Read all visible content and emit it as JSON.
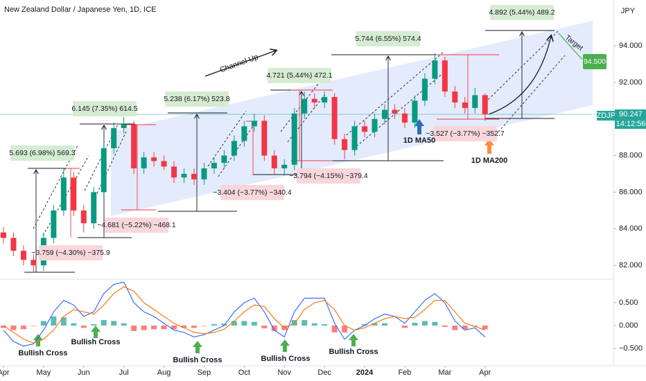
{
  "chart_data": [
    {
      "type": "candlestick",
      "title": "New Zealand Dollar / Japanese Yen, 1D, ICE",
      "x": [
        0,
        0.25,
        0.5,
        0.75,
        1,
        1.25,
        1.5,
        1.75,
        2,
        2.25,
        2.5,
        2.75,
        3,
        3.25,
        3.5,
        3.75,
        4,
        4.25,
        4.5,
        4.75,
        5,
        5.25,
        5.5,
        5.75,
        6,
        6.25,
        6.5,
        6.75,
        7,
        7.25,
        7.5,
        7.75,
        8,
        8.25,
        8.5,
        8.75,
        9,
        9.25,
        9.5,
        9.75,
        10,
        10.25,
        10.5,
        10.75,
        11,
        11.25,
        11.5,
        11.75,
        12
      ],
      "open": [
        83.8,
        83.5,
        82.8,
        82.3,
        82.0,
        83.5,
        85.0,
        86.8,
        85.0,
        84.3,
        86.0,
        88.4,
        89.5,
        89.7,
        87.3,
        87.9,
        87.7,
        87.4,
        86.8,
        87.0,
        86.7,
        87.3,
        87.6,
        88.0,
        88.8,
        89.6,
        89.9,
        88.0,
        87.3,
        87.5,
        90.3,
        91.1,
        90.9,
        91.2,
        88.9,
        88.3,
        89.6,
        89.3,
        90.0,
        90.5,
        90.3,
        89.8,
        91.0,
        92.2,
        93.2,
        91.5,
        90.9,
        90.6,
        91.3
      ],
      "high": [
        84.1,
        83.8,
        83.1,
        82.6,
        83.8,
        85.3,
        87.3,
        87.1,
        85.3,
        86.3,
        88.7,
        89.8,
        90.1,
        89.9,
        88.2,
        88.2,
        88.0,
        87.7,
        87.3,
        87.3,
        87.6,
        87.9,
        88.3,
        89.1,
        89.9,
        90.3,
        90.2,
        88.3,
        87.8,
        90.6,
        91.5,
        91.4,
        91.5,
        91.4,
        89.2,
        89.9,
        89.9,
        90.3,
        90.8,
        90.8,
        90.6,
        91.3,
        92.5,
        93.6,
        93.4,
        91.8,
        91.2,
        91.7,
        91.4
      ],
      "low": [
        83.2,
        82.5,
        82.0,
        81.6,
        81.7,
        83.2,
        84.7,
        84.7,
        83.8,
        84.0,
        85.7,
        88.1,
        89.2,
        87.0,
        87.0,
        87.4,
        87.2,
        86.5,
        86.5,
        86.4,
        86.4,
        87.0,
        87.3,
        87.7,
        88.5,
        89.3,
        87.7,
        87.0,
        86.9,
        87.2,
        90.0,
        90.6,
        90.6,
        88.6,
        87.8,
        88.0,
        89.0,
        89.0,
        89.7,
        90.0,
        89.5,
        89.5,
        90.7,
        91.9,
        91.2,
        90.6,
        90.3,
        90.3,
        89.9
      ],
      "close": [
        83.5,
        82.8,
        82.3,
        82.0,
        83.5,
        85.0,
        86.8,
        85.0,
        84.3,
        86.0,
        88.4,
        89.5,
        89.7,
        87.3,
        87.9,
        87.7,
        87.4,
        86.8,
        87.0,
        86.7,
        87.3,
        87.6,
        88.0,
        88.8,
        89.6,
        89.9,
        88.0,
        87.3,
        87.5,
        90.3,
        91.1,
        90.9,
        91.2,
        88.9,
        88.3,
        89.6,
        89.3,
        90.0,
        90.5,
        90.3,
        89.8,
        91.0,
        92.2,
        93.2,
        91.5,
        90.9,
        90.6,
        91.3,
        90.25
      ],
      "up_color": "#089981",
      "down_color": "#f23645",
      "xlim": [
        -0.0864,
        15.2
      ],
      "xticks": [
        {
          "value": 0,
          "label": "Apr"
        },
        {
          "value": 1,
          "label": "May"
        },
        {
          "value": 2,
          "label": "Jun"
        },
        {
          "value": 3,
          "label": "Jul"
        },
        {
          "value": 4,
          "label": "Aug"
        },
        {
          "value": 5,
          "label": "Sep"
        },
        {
          "value": 6,
          "label": "Oct"
        },
        {
          "value": 7,
          "label": "Nov"
        },
        {
          "value": 8,
          "label": "Dec"
        },
        {
          "value": 9,
          "label": "2024"
        },
        {
          "value": 10,
          "label": "Feb"
        },
        {
          "value": 11,
          "label": "Mar"
        },
        {
          "value": 12,
          "label": "Apr"
        }
      ],
      "ylim": [
        81.36,
        96.5
      ],
      "yticks": [
        {
          "value": 82,
          "label": "82.000"
        },
        {
          "value": 84,
          "label": "84.000"
        },
        {
          "value": 86,
          "label": "86.000"
        },
        {
          "value": 88,
          "label": "88.000"
        },
        {
          "value": 90,
          "label": "90.000"
        },
        {
          "value": 92,
          "label": "92.000"
        },
        {
          "value": 94,
          "label": "94.000"
        }
      ],
      "grid": false,
      "annotations": [
        "5.693 (6.98%) 569.3",
        "6.145 (7.35%) 614.5",
        "5.238 (6.17%) 523.8",
        "4.721 (5.44%) 472.1",
        "5.744 (6.55%) 574.4",
        "4.892 (5.44%) 489.2",
        "−3.759 (−4.30%) −375.9",
        "−4.681 (−5.22%) −468.1",
        "−3.404 (−3.77%) −340.4",
        "−3.794 (−4.15%) −379.4",
        "−3.527 (−3.77%) −352.7",
        "Channel Up",
        "Target",
        "94.500",
        "1D MA50",
        "1D MA200",
        "NZDJPY",
        "90.247",
        "14:12:56",
        "JPY"
      ]
    },
    {
      "type": "macd",
      "x": [
        0,
        0.25,
        0.5,
        0.75,
        1,
        1.25,
        1.5,
        1.75,
        2,
        2.25,
        2.5,
        2.75,
        3,
        3.25,
        3.5,
        3.75,
        4,
        4.25,
        4.5,
        4.75,
        5,
        5.25,
        5.5,
        5.75,
        6,
        6.25,
        6.5,
        6.75,
        7,
        7.25,
        7.5,
        7.75,
        8,
        8.25,
        8.5,
        8.75,
        9,
        9.25,
        9.5,
        9.75,
        10,
        10.25,
        10.5,
        10.75,
        11,
        11.25,
        11.5,
        11.75,
        12
      ],
      "series": [
        {
          "type": "line",
          "color": "#2962ff",
          "values": [
            -0.1,
            -0.35,
            -0.45,
            -0.4,
            -0.1,
            0.3,
            0.55,
            0.45,
            0.2,
            0.3,
            0.7,
            0.9,
            0.95,
            0.5,
            0.3,
            0.2,
            0.05,
            -0.1,
            -0.15,
            -0.25,
            -0.2,
            -0.1,
            0.0,
            0.3,
            0.5,
            0.6,
            0.3,
            -0.1,
            -0.25,
            0.3,
            0.6,
            0.6,
            0.6,
            0.05,
            -0.3,
            -0.1,
            0.0,
            0.15,
            0.25,
            0.2,
            0.05,
            0.3,
            0.55,
            0.7,
            0.5,
            0.1,
            -0.1,
            -0.05,
            -0.25
          ]
        },
        {
          "type": "line",
          "color": "#ff6d00",
          "values": [
            0.0,
            -0.15,
            -0.3,
            -0.38,
            -0.3,
            -0.1,
            0.2,
            0.35,
            0.3,
            0.25,
            0.45,
            0.7,
            0.85,
            0.75,
            0.5,
            0.35,
            0.2,
            0.05,
            -0.05,
            -0.15,
            -0.18,
            -0.15,
            -0.08,
            0.1,
            0.3,
            0.45,
            0.42,
            0.15,
            -0.05,
            0.05,
            0.35,
            0.5,
            0.55,
            0.35,
            0.0,
            -0.1,
            -0.05,
            0.05,
            0.15,
            0.2,
            0.15,
            0.18,
            0.35,
            0.55,
            0.55,
            0.3,
            0.05,
            -0.02,
            -0.1
          ]
        },
        {
          "type": "bar",
          "color": "#26a69a",
          "negative_color": "#ff5252",
          "values": [
            -0.05,
            -0.1,
            -0.08,
            -0.01,
            0.1,
            0.2,
            0.18,
            0.05,
            -0.05,
            0.03,
            0.12,
            0.1,
            0.05,
            -0.12,
            -0.1,
            -0.08,
            -0.08,
            -0.08,
            -0.05,
            -0.05,
            -0.01,
            0.03,
            0.04,
            0.1,
            0.1,
            0.08,
            -0.06,
            -0.12,
            -0.1,
            0.12,
            0.12,
            0.05,
            0.03,
            -0.15,
            -0.15,
            0,
            0.03,
            0.05,
            0.05,
            0,
            -0.05,
            0.06,
            0.1,
            0.08,
            -0.03,
            -0.1,
            -0.08,
            -0.02,
            -0.08
          ]
        }
      ],
      "xlim": [
        -0.0864,
        15.2
      ],
      "ylim": [
        -0.88,
        0.985
      ],
      "yticks": [
        {
          "value": -0.5,
          "label": "−0.500"
        },
        {
          "value": 0,
          "label": "0.000"
        },
        {
          "value": 0.5,
          "label": "0.500"
        }
      ],
      "annotations": [
        "Bullish Cross",
        "Bullish Cross",
        "Bullish Cross",
        "Bullish Cross",
        "Bullish Cross"
      ]
    }
  ]
}
